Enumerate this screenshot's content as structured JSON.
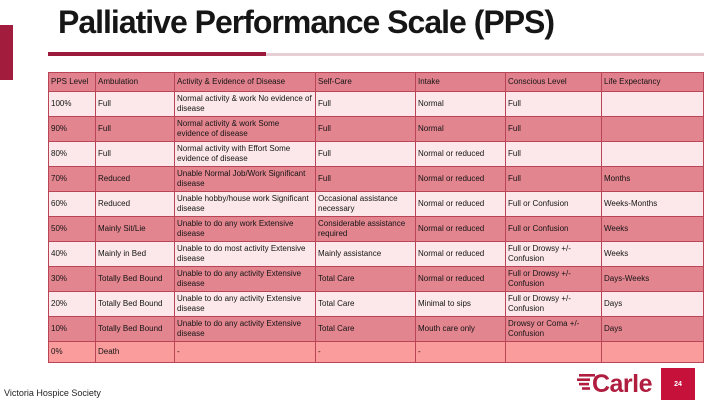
{
  "slide": {
    "title": "Palliative Performance Scale (PPS)",
    "credit": "Victoria Hospice Society",
    "logo_text": "Carle",
    "page_number": "24"
  },
  "colors": {
    "accent_dark_red": "#9c1b3c",
    "accent_light_pink": "#e6cfd4",
    "table_border": "#b84456",
    "header_row_bg": "#e0818d",
    "row_light_bg": "#fce8ea",
    "row_dark_bg": "#e2858f",
    "row_death_bg": "#fa9c9c",
    "logo_red": "#c6113a"
  },
  "table": {
    "headers": [
      "PPS Level",
      "Ambulation",
      "Activity & Evidence of Disease",
      "Self-Care",
      "Intake",
      "Conscious Level",
      "Life Expectancy"
    ],
    "rows": [
      {
        "level": "100%",
        "ambulation": "Full",
        "activity": "Normal activity & work No evidence of disease",
        "self_care": "Full",
        "intake": "Normal",
        "conscious": "Full",
        "life": ""
      },
      {
        "level": "90%",
        "ambulation": "Full",
        "activity": "Normal activity & work Some evidence of disease",
        "self_care": "Full",
        "intake": "Normal",
        "conscious": "Full",
        "life": ""
      },
      {
        "level": "80%",
        "ambulation": "Full",
        "activity": "Normal activity with Effort Some evidence of disease",
        "self_care": "Full",
        "intake": "Normal or reduced",
        "conscious": "Full",
        "life": ""
      },
      {
        "level": "70%",
        "ambulation": "Reduced",
        "activity": "Unable Normal Job/Work Significant disease",
        "self_care": "Full",
        "intake": "Normal or reduced",
        "conscious": "Full",
        "life": "Months"
      },
      {
        "level": "60%",
        "ambulation": "Reduced",
        "activity": "Unable hobby/house work Significant disease",
        "self_care": "Occasional assistance necessary",
        "intake": "Normal or reduced",
        "conscious": "Full or Confusion",
        "life": "Weeks-Months"
      },
      {
        "level": "50%",
        "ambulation": "Mainly Sit/Lie",
        "activity": "Unable to do any work Extensive disease",
        "self_care": "Considerable assistance required",
        "intake": "Normal or reduced",
        "conscious": "Full or Confusion",
        "life": "Weeks"
      },
      {
        "level": "40%",
        "ambulation": "Mainly in Bed",
        "activity": "Unable to do most activity Extensive disease",
        "self_care": "Mainly assistance",
        "intake": "Normal or reduced",
        "conscious": "Full or Drowsy +/- Confusion",
        "life": "Weeks"
      },
      {
        "level": "30%",
        "ambulation": "Totally Bed Bound",
        "activity": "Unable to do any activity Extensive disease",
        "self_care": "Total Care",
        "intake": "Normal or reduced",
        "conscious": "Full or Drowsy +/- Confusion",
        "life": "Days-Weeks"
      },
      {
        "level": "20%",
        "ambulation": "Totally Bed Bound",
        "activity": "Unable to do any activity Extensive disease",
        "self_care": "Total Care",
        "intake": "Minimal to sips",
        "conscious": "Full or Drowsy +/- Confusion",
        "life": "Days"
      },
      {
        "level": "10%",
        "ambulation": "Totally Bed Bound",
        "activity": "Unable to do any activity Extensive disease",
        "self_care": "Total Care",
        "intake": "Mouth care only",
        "conscious": "Drowsy or Coma +/- Confusion",
        "life": "Days"
      },
      {
        "level": "0%",
        "ambulation": "Death",
        "activity": "-",
        "self_care": "-",
        "intake": "-",
        "conscious": "",
        "life": ""
      }
    ]
  }
}
